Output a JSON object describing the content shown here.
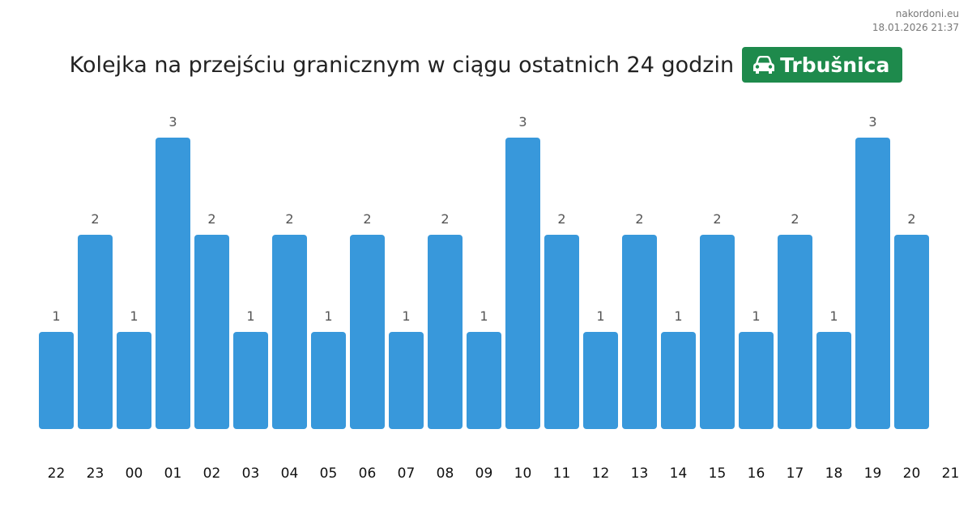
{
  "brand": {
    "site": "nakordoni.eu",
    "timestamp": "18.01.2026 21:37"
  },
  "header": {
    "title": "Kolejka na przejściu granicznym w ciągu ostatnich 24 godzin",
    "crossing": "Trbušnica",
    "crossing_icon": "car-icon"
  },
  "colors": {
    "bar": "#3898db",
    "badge": "#1e8a4c"
  },
  "chart_data": {
    "type": "bar",
    "title": "Kolejka na przejściu granicznym w ciągu ostatnich 24 godzin",
    "categories": [
      "22",
      "23",
      "00",
      "01",
      "02",
      "03",
      "04",
      "05",
      "06",
      "07",
      "08",
      "09",
      "10",
      "11",
      "12",
      "13",
      "14",
      "15",
      "16",
      "17",
      "18",
      "19",
      "20"
    ],
    "extra_tick_labels": [
      "21"
    ],
    "values": [
      1,
      2,
      1,
      3,
      2,
      1,
      2,
      1,
      2,
      1,
      2,
      1,
      3,
      2,
      1,
      2,
      1,
      2,
      1,
      2,
      1,
      3,
      2
    ],
    "ylim": [
      0,
      3
    ],
    "grid": false,
    "legend": "none"
  }
}
